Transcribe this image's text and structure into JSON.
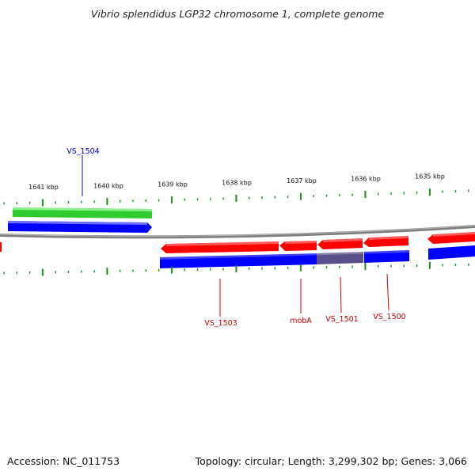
{
  "title": "Vibrio splendidus LGP32 chromosome 1, complete genome",
  "footer": {
    "accession": "Accession: NC_011753",
    "topology": "Topology: circular; Length: 3,299,302 bp; Genes: 3,066"
  },
  "colors": {
    "forward_cds": "#ff0000",
    "reverse_cds": "#0000ff",
    "gene": "#2ecc2e",
    "highlight": "#5a4f8a",
    "ruler": "#228b22",
    "backbone": "#8a8a8a",
    "label_blue": "#0000cc",
    "label_red": "#cc0000"
  },
  "ruler": {
    "unit": "kbp",
    "labels": [
      "1641 kbp",
      "1640 kbp",
      "1639 kbp",
      "1638 kbp",
      "1637 kbp",
      "1636 kbp",
      "1635 kbp"
    ]
  },
  "gene_labels": [
    {
      "text": "VS_1504",
      "color": "blue"
    },
    {
      "text": "VS_1503",
      "color": "red"
    },
    {
      "text": "mobA",
      "color": "red"
    },
    {
      "text": "VS_1501",
      "color": "red"
    },
    {
      "text": "VS_1500",
      "color": "red"
    }
  ]
}
